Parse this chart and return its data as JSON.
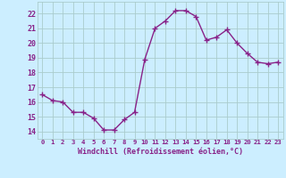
{
  "x": [
    0,
    1,
    2,
    3,
    4,
    5,
    6,
    7,
    8,
    9,
    10,
    11,
    12,
    13,
    14,
    15,
    16,
    17,
    18,
    19,
    20,
    21,
    22,
    23
  ],
  "y": [
    16.5,
    16.1,
    16.0,
    15.3,
    15.3,
    14.9,
    14.1,
    14.1,
    14.8,
    15.3,
    18.9,
    21.0,
    21.5,
    22.2,
    22.2,
    21.8,
    20.2,
    20.4,
    20.9,
    20.0,
    19.3,
    18.7,
    18.6,
    18.7
  ],
  "line_color": "#882288",
  "marker": "+",
  "marker_color": "#882288",
  "bg_color": "#cceeff",
  "grid_color": "#aacccc",
  "xlabel": "Windchill (Refroidissement éolien,°C)",
  "xlabel_color": "#882288",
  "tick_color": "#882288",
  "ylim": [
    13.5,
    22.8
  ],
  "xlim": [
    -0.5,
    23.5
  ],
  "yticks": [
    14,
    15,
    16,
    17,
    18,
    19,
    20,
    21,
    22
  ],
  "xticks": [
    0,
    1,
    2,
    3,
    4,
    5,
    6,
    7,
    8,
    9,
    10,
    11,
    12,
    13,
    14,
    15,
    16,
    17,
    18,
    19,
    20,
    21,
    22,
    23
  ],
  "xtick_labels": [
    "0",
    "1",
    "2",
    "3",
    "4",
    "5",
    "6",
    "7",
    "8",
    "9",
    "10",
    "11",
    "12",
    "13",
    "14",
    "15",
    "16",
    "17",
    "18",
    "19",
    "20",
    "21",
    "22",
    "23"
  ],
  "linewidth": 1.0,
  "markersize": 4,
  "xlabel_fontsize": 6.0,
  "xtick_fontsize": 5.2,
  "ytick_fontsize": 6.0
}
